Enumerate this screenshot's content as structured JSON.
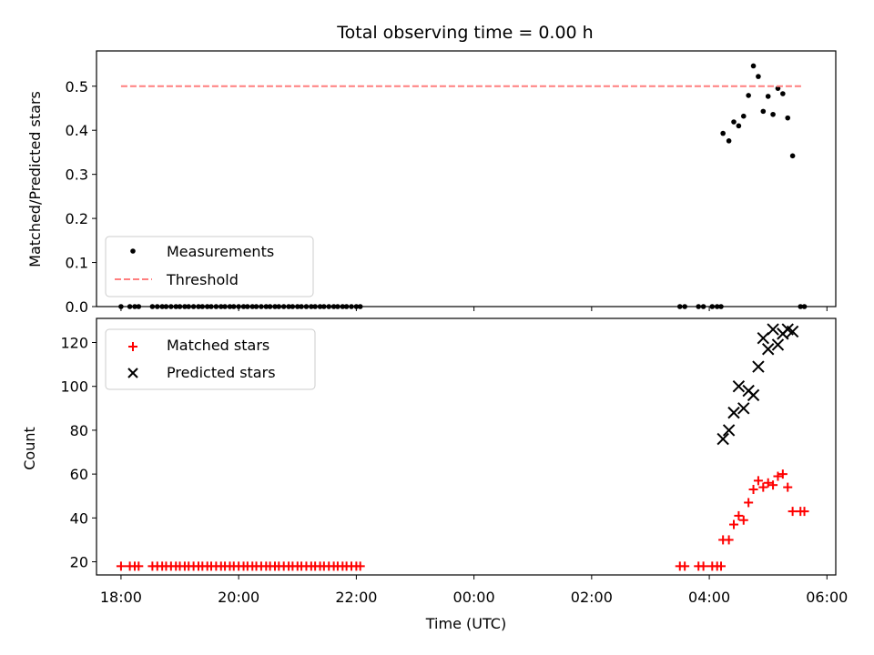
{
  "chart_data": [
    {
      "type": "scatter",
      "title": "Total observing time = 0.00 h",
      "xlabel": "",
      "ylabel": "Matched/Predicted stars",
      "xlim": [
        "17:35",
        "06:09"
      ],
      "ylim": [
        0,
        0.58
      ],
      "yticks": [
        "0.0",
        "0.1",
        "0.2",
        "0.3",
        "0.4",
        "0.5"
      ],
      "xticks": [
        "18:00",
        "20:00",
        "22:00",
        "00:00",
        "02:00",
        "04:00",
        "06:00"
      ],
      "x_tick_labels_shown": false,
      "legend": {
        "position": "lower-left",
        "entries": [
          "Measurements",
          "Threshold"
        ]
      },
      "series": [
        {
          "name": "Measurements",
          "marker": "dot",
          "color": "#000000",
          "x": [
            "18:00",
            "18:09",
            "18:14",
            "18:18",
            "18:32",
            "18:37",
            "18:42",
            "18:46",
            "18:51",
            "18:56",
            "19:00",
            "19:05",
            "19:09",
            "19:14",
            "19:19",
            "19:23",
            "19:28",
            "19:32",
            "19:37",
            "19:42",
            "19:46",
            "19:51",
            "19:55",
            "20:00",
            "20:05",
            "20:09",
            "20:14",
            "20:18",
            "20:23",
            "20:28",
            "20:32",
            "20:37",
            "20:41",
            "20:46",
            "20:51",
            "20:55",
            "21:00",
            "21:04",
            "21:09",
            "21:14",
            "21:18",
            "21:23",
            "21:27",
            "21:32",
            "21:37",
            "21:41",
            "21:46",
            "21:50",
            "21:55",
            "22:00",
            "22:04",
            "03:30",
            "03:35",
            "03:49",
            "03:54",
            "04:03",
            "04:08",
            "04:12",
            "04:14",
            "04:20",
            "04:25",
            "04:30",
            "04:35",
            "04:40",
            "04:45",
            "04:50",
            "04:55",
            "05:00",
            "05:05",
            "05:10",
            "05:15",
            "05:20",
            "05:25",
            "05:33",
            "05:37"
          ],
          "y": [
            0,
            0,
            0,
            0,
            0,
            0,
            0,
            0,
            0,
            0,
            0,
            0,
            0,
            0,
            0,
            0,
            0,
            0,
            0,
            0,
            0,
            0,
            0,
            0,
            0,
            0,
            0,
            0,
            0,
            0,
            0,
            0,
            0,
            0,
            0,
            0,
            0,
            0,
            0,
            0,
            0,
            0,
            0,
            0,
            0,
            0,
            0,
            0,
            0,
            0,
            0,
            0,
            0,
            0,
            0,
            0,
            0,
            0,
            0.393,
            0.376,
            0.419,
            0.41,
            0.432,
            0.479,
            0.546,
            0.522,
            0.443,
            0.477,
            0.436,
            0.495,
            0.483,
            0.428,
            0.342,
            0,
            0
          ]
        },
        {
          "name": "Threshold",
          "type": "line",
          "style": "dashed",
          "color": "#ff7f7f",
          "x": [
            "18:00",
            "05:34"
          ],
          "y": [
            0.5,
            0.5
          ]
        }
      ]
    },
    {
      "type": "scatter",
      "title": "",
      "xlabel": "Time (UTC)",
      "ylabel": "Count",
      "xlim": [
        "17:35",
        "06:09"
      ],
      "ylim": [
        14,
        131
      ],
      "yticks": [
        "20",
        "40",
        "60",
        "80",
        "100",
        "120"
      ],
      "xticks": [
        "18:00",
        "20:00",
        "22:00",
        "00:00",
        "02:00",
        "04:00",
        "06:00"
      ],
      "legend": {
        "position": "upper-left",
        "entries": [
          "Matched stars",
          "Predicted stars"
        ]
      },
      "series": [
        {
          "name": "Matched stars",
          "marker": "plus",
          "color": "#ff0000",
          "x": [
            "18:00",
            "18:09",
            "18:14",
            "18:18",
            "18:32",
            "18:37",
            "18:42",
            "18:46",
            "18:51",
            "18:56",
            "19:00",
            "19:05",
            "19:09",
            "19:14",
            "19:19",
            "19:23",
            "19:28",
            "19:32",
            "19:37",
            "19:42",
            "19:46",
            "19:51",
            "19:55",
            "20:00",
            "20:05",
            "20:09",
            "20:14",
            "20:18",
            "20:23",
            "20:28",
            "20:32",
            "20:37",
            "20:41",
            "20:46",
            "20:51",
            "20:55",
            "21:00",
            "21:04",
            "21:09",
            "21:14",
            "21:18",
            "21:23",
            "21:27",
            "21:32",
            "21:37",
            "21:41",
            "21:46",
            "21:50",
            "21:55",
            "22:00",
            "22:04",
            "03:30",
            "03:35",
            "03:49",
            "03:54",
            "04:03",
            "04:08",
            "04:12",
            "04:14",
            "04:20",
            "04:25",
            "04:30",
            "04:35",
            "04:40",
            "04:45",
            "04:50",
            "04:55",
            "05:00",
            "05:05",
            "05:10",
            "05:15",
            "05:20",
            "05:25",
            "05:33",
            "05:37"
          ],
          "y": [
            18,
            18,
            18,
            18,
            18,
            18,
            18,
            18,
            18,
            18,
            18,
            18,
            18,
            18,
            18,
            18,
            18,
            18,
            18,
            18,
            18,
            18,
            18,
            18,
            18,
            18,
            18,
            18,
            18,
            18,
            18,
            18,
            18,
            18,
            18,
            18,
            18,
            18,
            18,
            18,
            18,
            18,
            18,
            18,
            18,
            18,
            18,
            18,
            18,
            18,
            18,
            18,
            18,
            18,
            18,
            18,
            18,
            18,
            30,
            30,
            37,
            41,
            39,
            47,
            53,
            57,
            54,
            56,
            55,
            59,
            60,
            54,
            43,
            43,
            43
          ]
        },
        {
          "name": "Predicted stars",
          "marker": "x",
          "color": "#000000",
          "x": [
            "04:14",
            "04:20",
            "04:25",
            "04:30",
            "04:35",
            "04:40",
            "04:45",
            "04:50",
            "04:55",
            "05:00",
            "05:05",
            "05:10",
            "05:15",
            "05:20",
            "05:25"
          ],
          "y": [
            76,
            80,
            88,
            100,
            90,
            98,
            96,
            109,
            122,
            117,
            126,
            119,
            124,
            126,
            125
          ]
        }
      ]
    }
  ]
}
